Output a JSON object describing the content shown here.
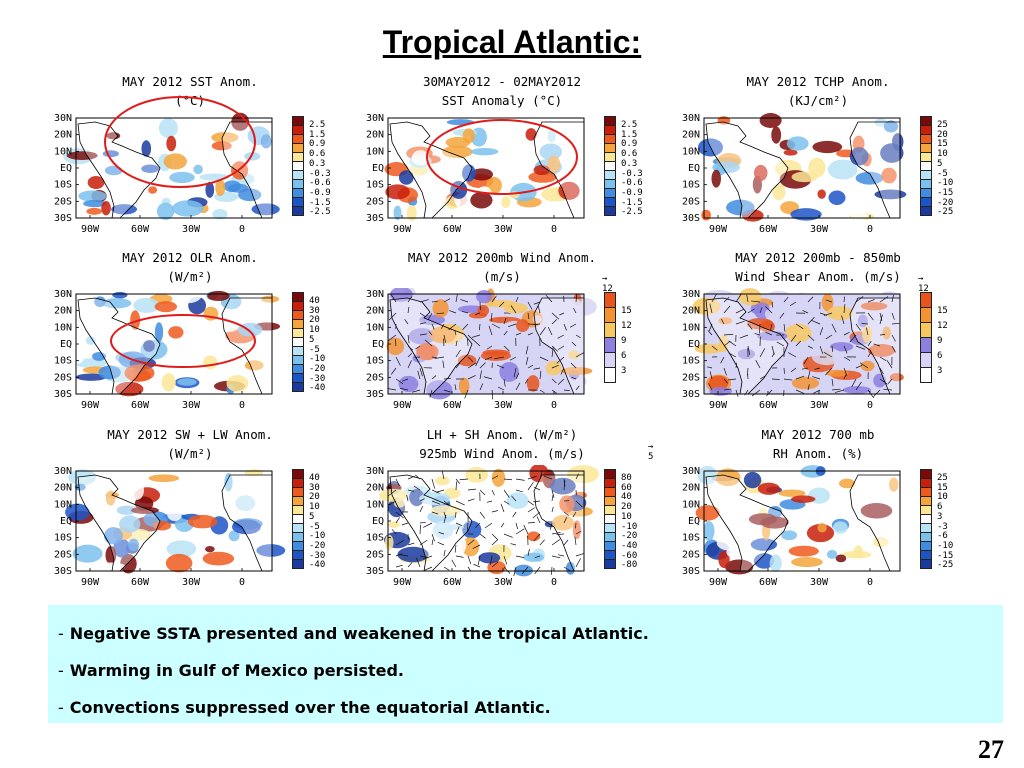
{
  "slide": {
    "title": "Tropical Atlantic:",
    "page_number": "27",
    "bullets": [
      "Negative SSTA presented and weakened in the tropical Atlantic.",
      "Warming in Gulf of Mexico persisted.",
      "Convections suppressed over the equatorial Atlantic."
    ]
  },
  "map_axes": {
    "lat_ticks": [
      "30N",
      "20N",
      "10N",
      "EQ",
      "10S",
      "20S",
      "30S"
    ],
    "lon_ticks": [
      "90W",
      "60W",
      "30W",
      "0"
    ]
  },
  "panels": [
    {
      "title1": "MAY 2012 SST Anom.",
      "title2": "(°C)",
      "legend": [
        "2.5",
        "1.5",
        "0.9",
        "0.6",
        "0.3",
        "-0.3",
        "-0.6",
        "-0.9",
        "-1.5",
        "-2.5"
      ]
    },
    {
      "title1": "30MAY2012 - 02MAY2012",
      "title2": "SST Anomaly (°C)",
      "legend": [
        "2.5",
        "1.5",
        "0.9",
        "0.6",
        "0.3",
        "-0.3",
        "-0.6",
        "-0.9",
        "-1.5",
        "-2.5"
      ]
    },
    {
      "title1": "MAY 2012 TCHP Anom.",
      "title2": "(KJ/cm²)",
      "legend": [
        "25",
        "20",
        "15",
        "10",
        "5",
        "-5",
        "-10",
        "-15",
        "-20",
        "-25"
      ]
    },
    {
      "title1": "MAY 2012 OLR Anom.",
      "title2": "(W/m²)",
      "legend": [
        "40",
        "30",
        "20",
        "10",
        "5",
        "-5",
        "-10",
        "-20",
        "-30",
        "-40"
      ]
    },
    {
      "title1": "MAY 2012 200mb Wind Anom.",
      "title2": "(m/s)",
      "vector_ref": "12",
      "legend": [
        "15",
        "12",
        "9",
        "6",
        "3"
      ]
    },
    {
      "title1": "MAY 2012 200mb - 850mb",
      "title2": "Wind Shear Anom. (m/s)",
      "vector_ref": "12",
      "legend": [
        "15",
        "12",
        "9",
        "6",
        "3"
      ]
    },
    {
      "title1": "MAY 2012 SW + LW Anom.",
      "title2": "(W/m²)",
      "legend": [
        "40",
        "30",
        "20",
        "10",
        "5",
        "-5",
        "-10",
        "-20",
        "-30",
        "-40"
      ]
    },
    {
      "title1": "LH + SH Anom. (W/m²)",
      "title2": "925mb Wind Anom. (m/s)",
      "vector_ref": "5",
      "legend": [
        "80",
        "60",
        "40",
        "20",
        "10",
        "-10",
        "-20",
        "-40",
        "-60",
        "-80"
      ]
    },
    {
      "title1": "MAY 2012 700 mb",
      "title2": "RH Anom. (%)",
      "legend": [
        "25",
        "15",
        "10",
        "6",
        "3",
        "-3",
        "-6",
        "-10",
        "-15",
        "-25"
      ]
    }
  ],
  "colors": {
    "div": [
      "#7a0a0a",
      "#c81e0a",
      "#ee5a1e",
      "#f5a53c",
      "#fbe896",
      "#ffffff",
      "#b9e3f5",
      "#7cc1ee",
      "#3f8ce0",
      "#1d55c6",
      "#1b3a9e"
    ],
    "wind": [
      "#e8541c",
      "#f39332",
      "#f8c860",
      "#8b7fe0",
      "#d7d5f5",
      "#ffffff"
    ],
    "land": "#ffffff",
    "highlight_circle": "#e01b1b"
  }
}
